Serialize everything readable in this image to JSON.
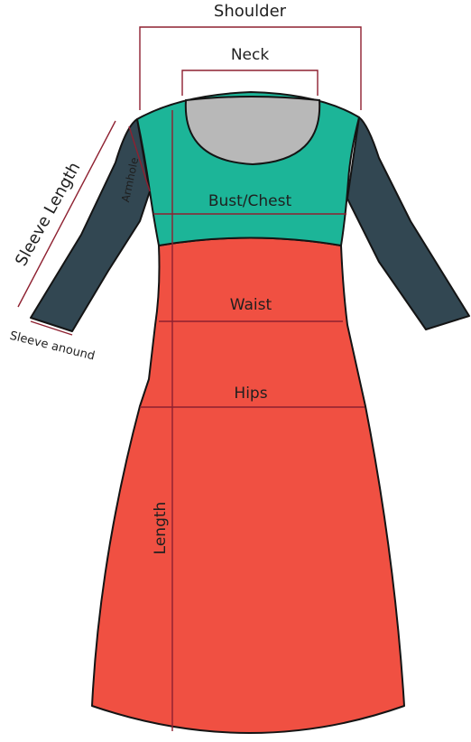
{
  "labels": {
    "shoulder": "Shoulder",
    "neck": "Neck",
    "sleeve_length": "Sleeve Length",
    "armhole": "Armhole",
    "bust_chest": "Bust/Chest",
    "waist": "Waist",
    "sleeve_around": "Sleeve anound",
    "hips": "Hips",
    "length": "Length"
  },
  "colors": {
    "bodice": "#1cb598",
    "skirt": "#f05042",
    "sleeve": "#324752",
    "neck": "#b8b8b8",
    "outline": "#141414",
    "measure_line": "#8e2030"
  }
}
